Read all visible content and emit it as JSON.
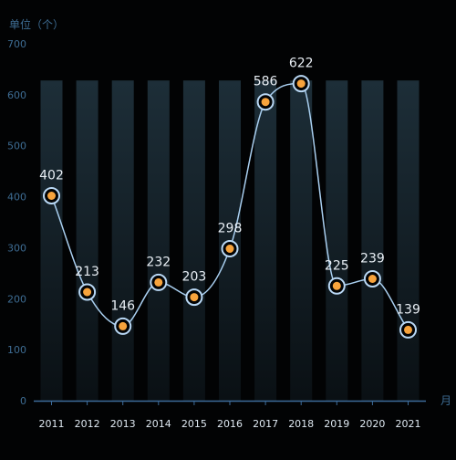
{
  "chart_data": {
    "type": "line",
    "unit_label": "单位（个）",
    "x_unit": "月",
    "categories": [
      "2011",
      "2012",
      "2013",
      "2014",
      "2015",
      "2016",
      "2017",
      "2018",
      "2019",
      "2020",
      "2021"
    ],
    "values": [
      402,
      213,
      146,
      232,
      203,
      298,
      586,
      622,
      225,
      239,
      139
    ],
    "ylim": [
      0,
      700
    ],
    "yticks": [
      0,
      100,
      200,
      300,
      400,
      500,
      600,
      700
    ],
    "background_bar_value": 628,
    "grid": false,
    "colors": {
      "background": "#020304",
      "bar_top": "#1d2e38",
      "bar_bottom": "#0a1014",
      "line": "#a9cff0",
      "point_ring": "#b9d8f5",
      "point_fill": "#f7a33c",
      "axis": "#3d6c9b",
      "tick_text": "#3e6d94",
      "category_text": "#dfe9f2",
      "label_text": "#e8eef4"
    }
  }
}
